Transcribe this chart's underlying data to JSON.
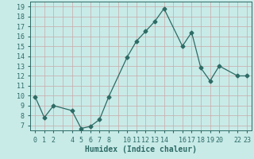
{
  "x": [
    0,
    1,
    2,
    4,
    5,
    6,
    7,
    8,
    10,
    11,
    12,
    13,
    14,
    16,
    17,
    18,
    19,
    20,
    22,
    23
  ],
  "y": [
    9.9,
    7.8,
    9.0,
    8.5,
    6.7,
    6.9,
    7.6,
    9.9,
    13.9,
    15.5,
    16.5,
    17.5,
    18.8,
    15.0,
    16.4,
    12.8,
    11.5,
    13.0,
    12.0,
    12.0
  ],
  "line_color": "#2e6b65",
  "marker": "D",
  "marker_size": 2.5,
  "bg_color": "#c8ebe8",
  "grid_color": "#c8a8a8",
  "xlabel": "Humidex (Indice chaleur)",
  "xlabel_fontsize": 7,
  "tick_fontsize": 6,
  "yticks": [
    7,
    8,
    9,
    10,
    11,
    12,
    13,
    14,
    15,
    16,
    17,
    18,
    19
  ],
  "xtick_labels": [
    "0",
    "1",
    "2",
    "",
    "4",
    "5",
    "6",
    "7",
    "8",
    "",
    "10",
    "11",
    "12",
    "13",
    "14",
    "",
    "16",
    "17",
    "18",
    "19",
    "20",
    "",
    "22",
    "23"
  ],
  "xticks_pos": [
    0,
    1,
    2,
    3,
    4,
    5,
    6,
    7,
    8,
    9,
    10,
    11,
    12,
    13,
    14,
    15,
    16,
    17,
    18,
    19,
    20,
    21,
    22,
    23
  ],
  "ylim": [
    6.5,
    19.5
  ],
  "xlim": [
    -0.5,
    23.5
  ]
}
